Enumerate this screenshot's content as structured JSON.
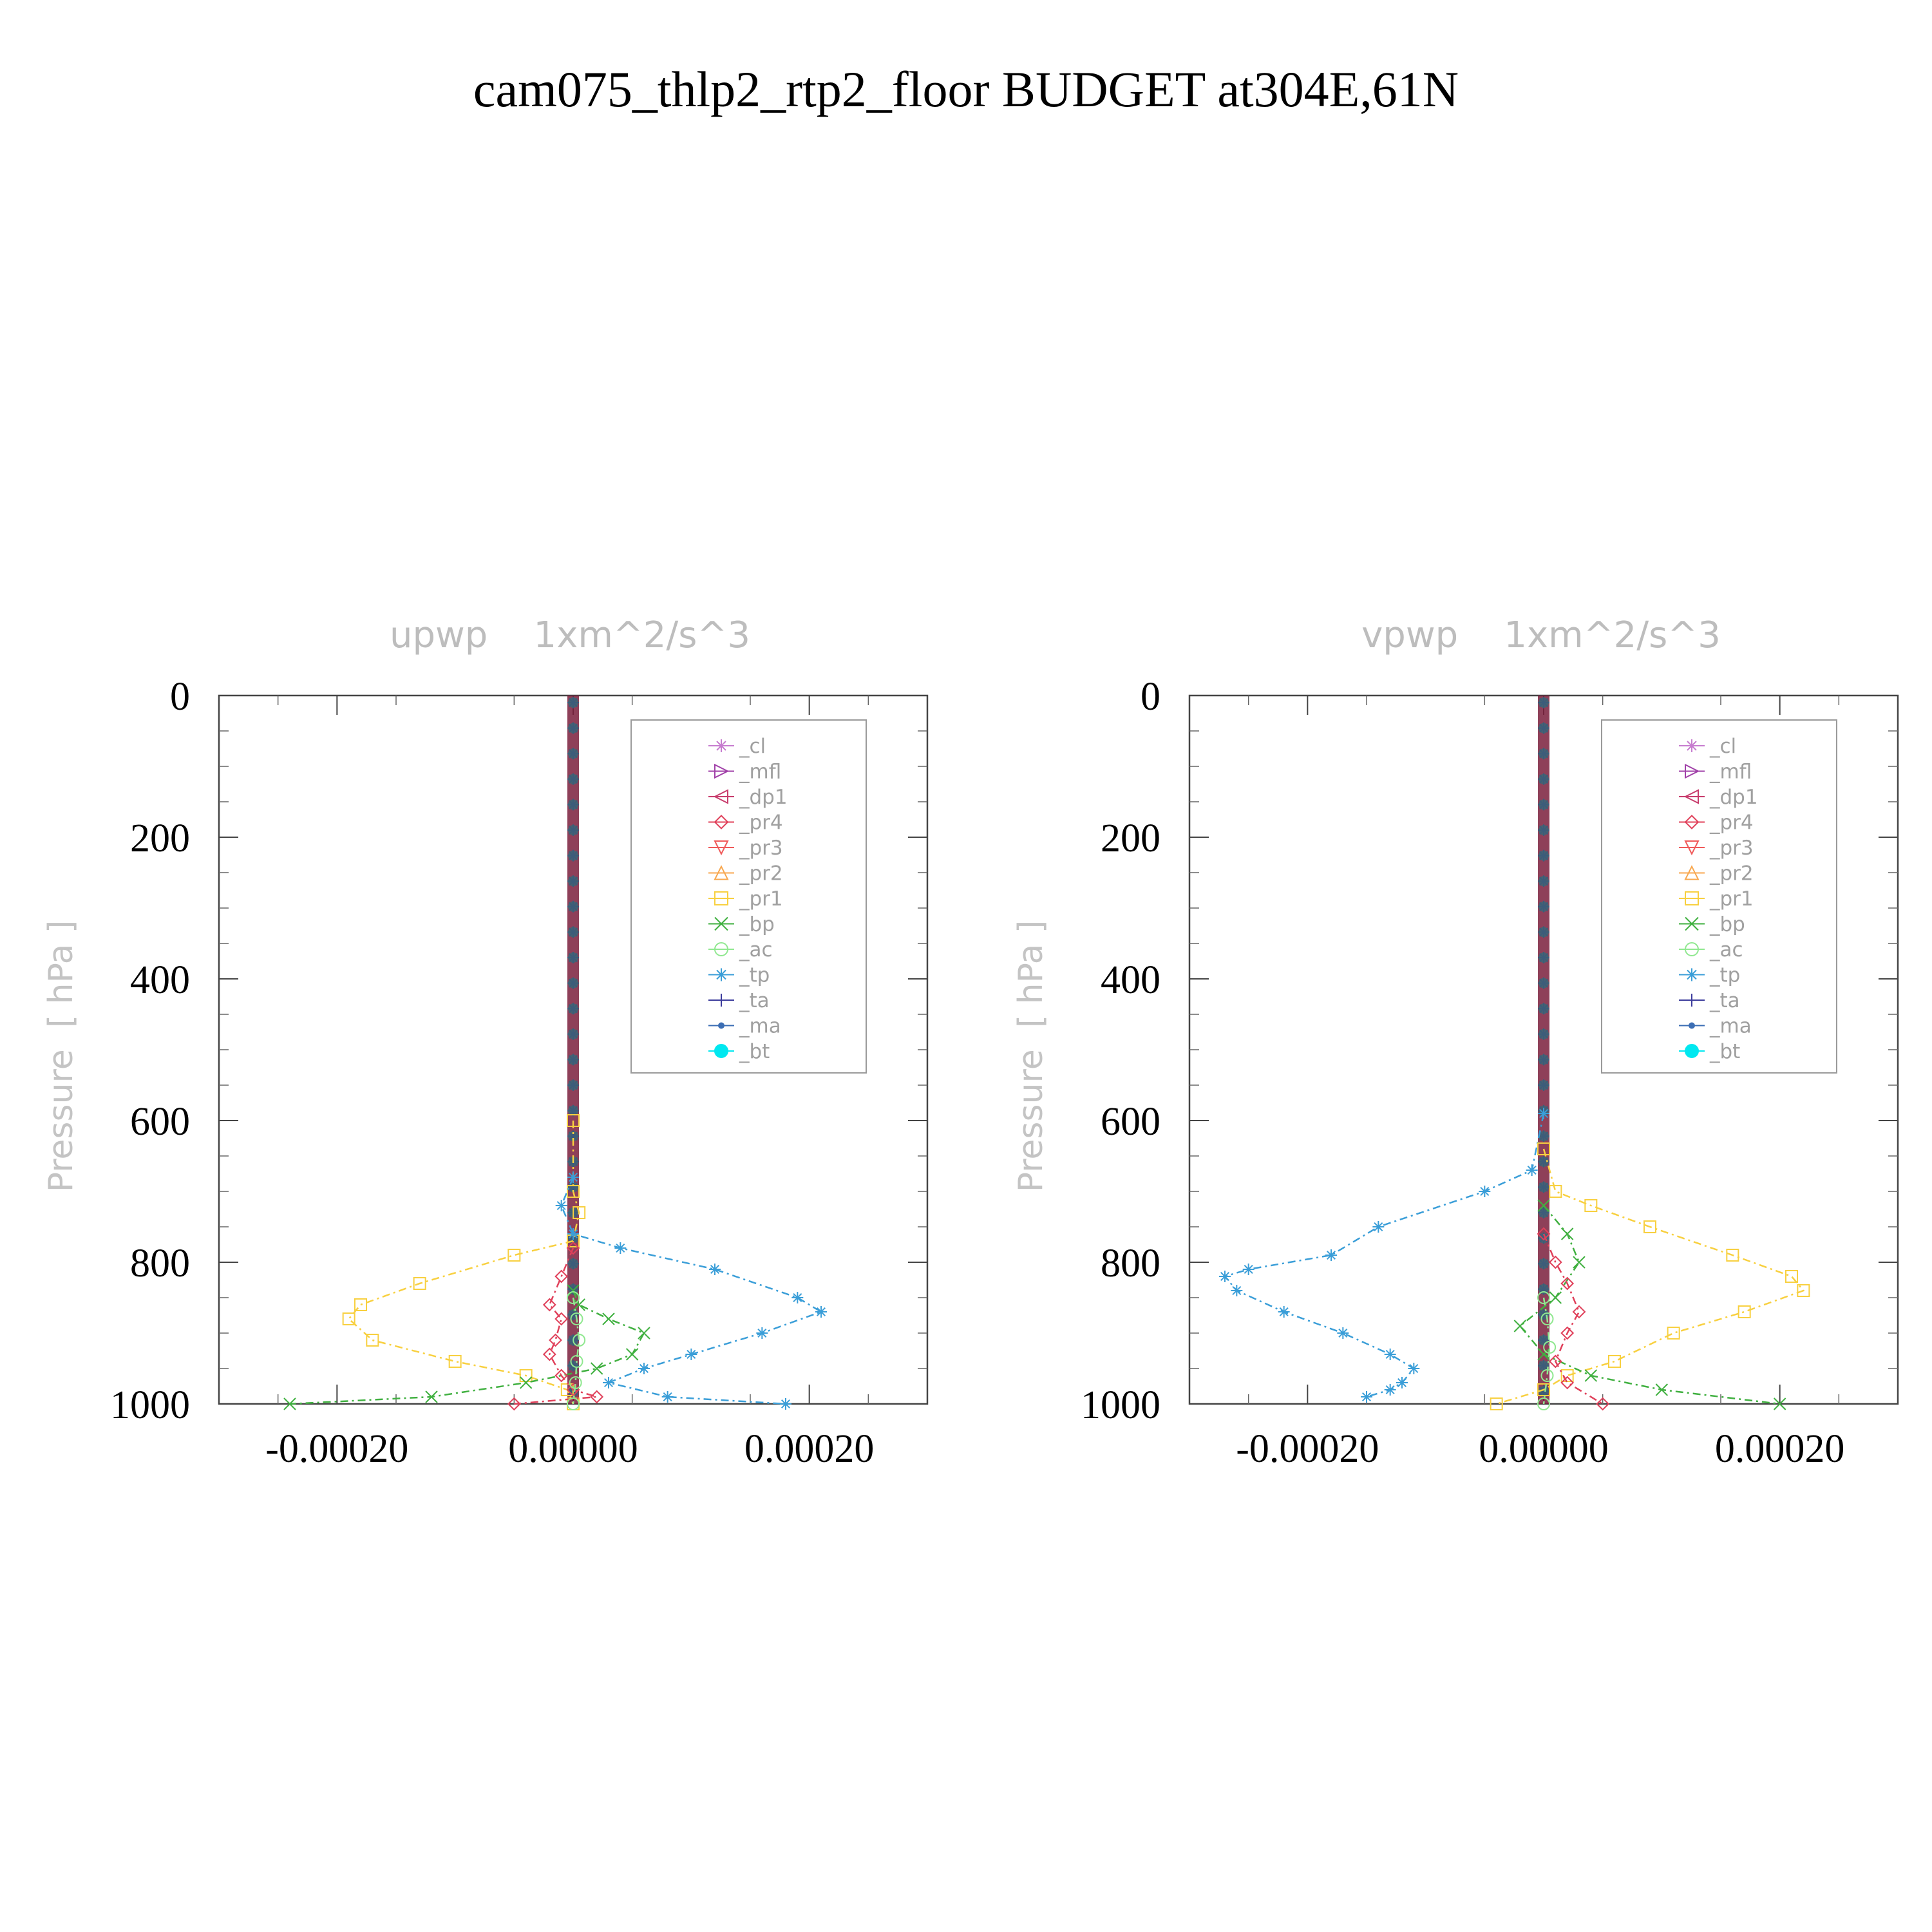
{
  "page": {
    "title": "cam075_thlp2_rtp2_floor  BUDGET at304E,61N"
  },
  "legend_items": [
    {
      "label": "_cl",
      "color": "#c77ccf",
      "marker": "star"
    },
    {
      "label": "_mfl",
      "color": "#a040a8",
      "marker": "tri-right"
    },
    {
      "label": "_dp1",
      "color": "#c83c6c",
      "marker": "tri-left"
    },
    {
      "label": "_pr4",
      "color": "#e0405a",
      "marker": "diamond"
    },
    {
      "label": "_pr3",
      "color": "#f05a5a",
      "marker": "tri-down"
    },
    {
      "label": "_pr2",
      "color": "#f8a850",
      "marker": "tri-up"
    },
    {
      "label": "_pr1",
      "color": "#f8d040",
      "marker": "square"
    },
    {
      "label": "_bp",
      "color": "#40b040",
      "marker": "x"
    },
    {
      "label": "_ac",
      "color": "#90e890",
      "marker": "circle"
    },
    {
      "label": "_tp",
      "color": "#3a9ed8",
      "marker": "asterisk"
    },
    {
      "label": "_ta",
      "color": "#3c3c9c",
      "marker": "plus"
    },
    {
      "label": "_ma",
      "color": "#3c6eb4",
      "marker": "dot"
    },
    {
      "label": "_bt",
      "color": "#00e8f0",
      "marker": "bigdot"
    }
  ],
  "chart_data": [
    {
      "type": "line",
      "title": "upwp    1xm^2/s^3",
      "ylabel": "Pressure  [ hPa ]",
      "xlim": [
        -0.0003,
        0.0003
      ],
      "ylim": [
        1000,
        0
      ],
      "xticks": [
        -0.0002,
        0.0,
        0.0002
      ],
      "xtick_labels": [
        "-0.00020",
        "0.00000",
        "0.00020"
      ],
      "yticks": [
        0,
        200,
        400,
        600,
        800,
        1000
      ],
      "ytick_labels": [
        "0",
        "200",
        "400",
        "600",
        "800",
        "1000"
      ],
      "legend": "top-right",
      "grid": false,
      "series": [
        {
          "name": "_pr1",
          "x": [
            0,
            0,
            5e-06,
            0,
            -5e-05,
            -0.00013,
            -0.00018,
            -0.00019,
            -0.00017,
            -0.0001,
            -4e-05,
            -5e-06,
            0
          ],
          "y": [
            600,
            700,
            730,
            770,
            790,
            830,
            860,
            880,
            910,
            940,
            960,
            980,
            1000
          ]
        },
        {
          "name": "_tp",
          "x": [
            0,
            -1e-05,
            0,
            4e-05,
            0.00012,
            0.00019,
            0.00021,
            0.00016,
            0.0001,
            6e-05,
            3e-05,
            8e-05,
            0.00018
          ],
          "y": [
            680,
            720,
            760,
            780,
            810,
            850,
            870,
            900,
            930,
            950,
            970,
            990,
            1000
          ]
        },
        {
          "name": "_bp",
          "x": [
            0,
            5e-06,
            3e-05,
            6e-05,
            5e-05,
            2e-05,
            -4e-05,
            -0.00012,
            -0.00024
          ],
          "y": [
            840,
            860,
            880,
            900,
            930,
            950,
            970,
            990,
            1000
          ]
        },
        {
          "name": "_pr4",
          "x": [
            0,
            -1e-05,
            -2e-05,
            -1e-05,
            -1.5e-05,
            -2e-05,
            -1e-05,
            0,
            2e-05,
            -5e-05
          ],
          "y": [
            780,
            820,
            860,
            880,
            910,
            930,
            960,
            980,
            990,
            1000
          ]
        },
        {
          "name": "_ac",
          "x": [
            0,
            3e-06,
            5e-06,
            3e-06,
            2e-06,
            0
          ],
          "y": [
            850,
            880,
            910,
            940,
            970,
            1000
          ]
        }
      ]
    },
    {
      "type": "line",
      "title": "vpwp    1xm^2/s^3",
      "ylabel": "Pressure  [ hPa ]",
      "xlim": [
        -0.0003,
        0.0003
      ],
      "ylim": [
        1000,
        0
      ],
      "xticks": [
        -0.0002,
        0.0,
        0.0002
      ],
      "xtick_labels": [
        "-0.00020",
        "0.00000",
        "0.00020"
      ],
      "yticks": [
        0,
        200,
        400,
        600,
        800,
        1000
      ],
      "ytick_labels": [
        "0",
        "200",
        "400",
        "600",
        "800",
        "1000"
      ],
      "legend": "top-right",
      "grid": false,
      "series": [
        {
          "name": "_tp",
          "x": [
            0,
            -1e-05,
            -5e-05,
            -0.00014,
            -0.00018,
            -0.00025,
            -0.00027,
            -0.00026,
            -0.00022,
            -0.00017,
            -0.00013,
            -0.00011,
            -0.00012,
            -0.00013,
            -0.00015
          ],
          "y": [
            590,
            670,
            700,
            750,
            790,
            810,
            820,
            840,
            870,
            900,
            930,
            950,
            970,
            980,
            990
          ]
        },
        {
          "name": "_pr1",
          "x": [
            0,
            1e-05,
            4e-05,
            9e-05,
            0.00016,
            0.00021,
            0.00022,
            0.00017,
            0.00011,
            6e-05,
            2e-05,
            0,
            -4e-05
          ],
          "y": [
            640,
            700,
            720,
            750,
            790,
            820,
            840,
            870,
            900,
            940,
            960,
            980,
            1000
          ]
        },
        {
          "name": "_bp",
          "x": [
            0,
            2e-05,
            3e-05,
            1e-05,
            -2e-05,
            0,
            4e-05,
            0.0001,
            0.0002
          ],
          "y": [
            720,
            760,
            800,
            850,
            890,
            930,
            960,
            980,
            1000
          ]
        },
        {
          "name": "_pr4",
          "x": [
            0,
            1e-05,
            2e-05,
            3e-05,
            2e-05,
            1e-05,
            2e-05,
            5e-05
          ],
          "y": [
            760,
            800,
            830,
            870,
            900,
            940,
            970,
            1000
          ]
        },
        {
          "name": "_ac",
          "x": [
            0,
            3e-06,
            5e-06,
            3e-06,
            0
          ],
          "y": [
            850,
            880,
            920,
            960,
            1000
          ]
        }
      ]
    }
  ]
}
